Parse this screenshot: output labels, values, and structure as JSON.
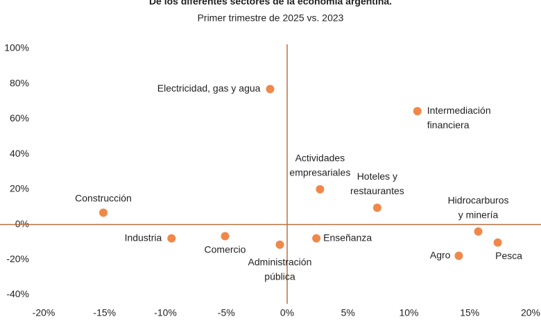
{
  "chart_data": {
    "type": "scatter",
    "title": "De los diferentes sectores de la economía argentina.",
    "subtitle": "Primer trimestre de 2025 vs. 2023",
    "labels": [
      [
        "Electricidad, gas y agua"
      ],
      [
        "Intermediación",
        "financiera"
      ],
      [
        "Actividades",
        "empresariales"
      ],
      [
        "Hoteles y",
        "restaurantes"
      ],
      [
        "Construcción"
      ],
      [
        "Hidrocarburos",
        "y minería"
      ],
      [
        "Industria"
      ],
      [
        "Comercio"
      ],
      [
        "Administración",
        "pública"
      ],
      [
        "Enseñanza"
      ],
      [
        "Agro"
      ],
      [
        "Pesca"
      ]
    ],
    "x": [
      -1.4,
      10.7,
      2.7,
      7.4,
      -15.1,
      15.7,
      -9.5,
      -5.1,
      -0.6,
      2.4,
      14.1,
      17.3
    ],
    "values": [
      77,
      64.4,
      20,
      9.5,
      6.7,
      -4,
      -7.9,
      -6.7,
      -11.5,
      -7.9,
      -17.8,
      -10.3
    ],
    "color": "#f0884a",
    "xlim": [
      -20,
      20
    ],
    "ylim": [
      -40,
      100
    ],
    "xticks": [
      {
        "value": -20,
        "label": "-20%"
      },
      {
        "value": -15,
        "label": "-15%"
      },
      {
        "value": -10,
        "label": "-10%"
      },
      {
        "value": -5,
        "label": "-5%"
      },
      {
        "value": 0,
        "label": "0%"
      },
      {
        "value": 5,
        "label": "5%"
      },
      {
        "value": 10,
        "label": "10%"
      },
      {
        "value": 15,
        "label": "15%"
      },
      {
        "value": 20,
        "label": "20%"
      }
    ],
    "yticks": [
      {
        "value": -40,
        "label": "-40%"
      },
      {
        "value": -20,
        "label": "-20%"
      },
      {
        "value": 0,
        "label": "0%"
      },
      {
        "value": 20,
        "label": "20%"
      },
      {
        "value": 40,
        "label": "40%"
      },
      {
        "value": 60,
        "label": "60%"
      },
      {
        "value": 80,
        "label": "80%"
      },
      {
        "value": 100,
        "label": "100%"
      }
    ]
  }
}
